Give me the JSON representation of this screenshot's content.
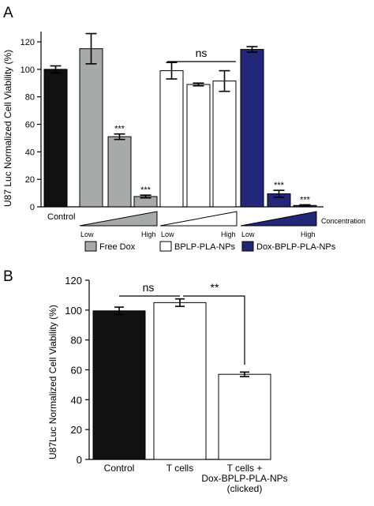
{
  "colors": {
    "control": "#111111",
    "free_dox": "#a6aaa9",
    "bplp": "#ffffff",
    "dox_bplp": "#23277a",
    "axis": "#000000"
  },
  "chart_data": [
    {
      "type": "bar",
      "panel_label": "A",
      "ylabel": "U87 Luc Normalized Cell Viability (%)",
      "ylim": [
        0,
        120
      ],
      "yticks": [
        0,
        20,
        40,
        60,
        80,
        100,
        120
      ],
      "bars": [
        {
          "group": "Control",
          "value": 100,
          "error": 2.5,
          "color": "#111111",
          "sig": ""
        },
        {
          "group": "Free Dox",
          "level": "low",
          "value": 115,
          "error": 11,
          "color": "#a6aaa9",
          "sig": ""
        },
        {
          "group": "Free Dox",
          "level": "mid",
          "value": 51,
          "error": 2,
          "color": "#a6aaa9",
          "sig": "***"
        },
        {
          "group": "Free Dox",
          "level": "high",
          "value": 7.5,
          "error": 1,
          "color": "#a6aaa9",
          "sig": "***"
        },
        {
          "group": "BPLP-PLA-NPs",
          "level": "low",
          "value": 99,
          "error": 6,
          "color": "#ffffff",
          "sig": ""
        },
        {
          "group": "BPLP-PLA-NPs",
          "level": "mid",
          "value": 89,
          "error": 1,
          "color": "#ffffff",
          "sig": ""
        },
        {
          "group": "BPLP-PLA-NPs",
          "level": "high",
          "value": 91.5,
          "error": 7.5,
          "color": "#ffffff",
          "sig": ""
        },
        {
          "group": "Dox-BPLP-PLA-NPs",
          "level": "low",
          "value": 114.5,
          "error": 2,
          "color": "#23277a",
          "sig": ""
        },
        {
          "group": "Dox-BPLP-PLA-NPs",
          "level": "mid",
          "value": 9.5,
          "error": 2.5,
          "color": "#23277a",
          "sig": "***"
        },
        {
          "group": "Dox-BPLP-PLA-NPs",
          "level": "high",
          "value": 1,
          "error": 0.5,
          "color": "#23277a",
          "sig": "***"
        }
      ],
      "annotations": [
        {
          "text": "ns",
          "from_bar": 1,
          "to_bar": 7
        }
      ],
      "labels": {
        "control": "Control",
        "low": "Low",
        "high": "High",
        "concentration": "Concentration"
      },
      "legend": [
        {
          "label": "Free Dox",
          "color": "#a6aaa9"
        },
        {
          "label": "BPLP-PLA-NPs",
          "color": "#ffffff"
        },
        {
          "label": "Dox-BPLP-PLA-NPs",
          "color": "#23277a"
        }
      ]
    },
    {
      "type": "bar",
      "panel_label": "B",
      "ylabel": "U87Luc Normalized Cell Viability (%)",
      "ylim": [
        0,
        120
      ],
      "yticks": [
        0,
        20,
        40,
        60,
        80,
        100,
        120
      ],
      "categories": [
        "Control",
        "T cells",
        "T cells +\nDox-BPLP-PLA-NPs\n(clicked)"
      ],
      "values": [
        99.5,
        105,
        57
      ],
      "errors": [
        2.5,
        2.5,
        1.5
      ],
      "colors": [
        "#111111",
        "#ffffff",
        "#ffffff"
      ],
      "annotations": [
        {
          "text": "ns",
          "from_bar": 0,
          "to_bar": 1
        },
        {
          "text": "**",
          "from_bar": 1,
          "to_bar": 2
        }
      ]
    }
  ]
}
